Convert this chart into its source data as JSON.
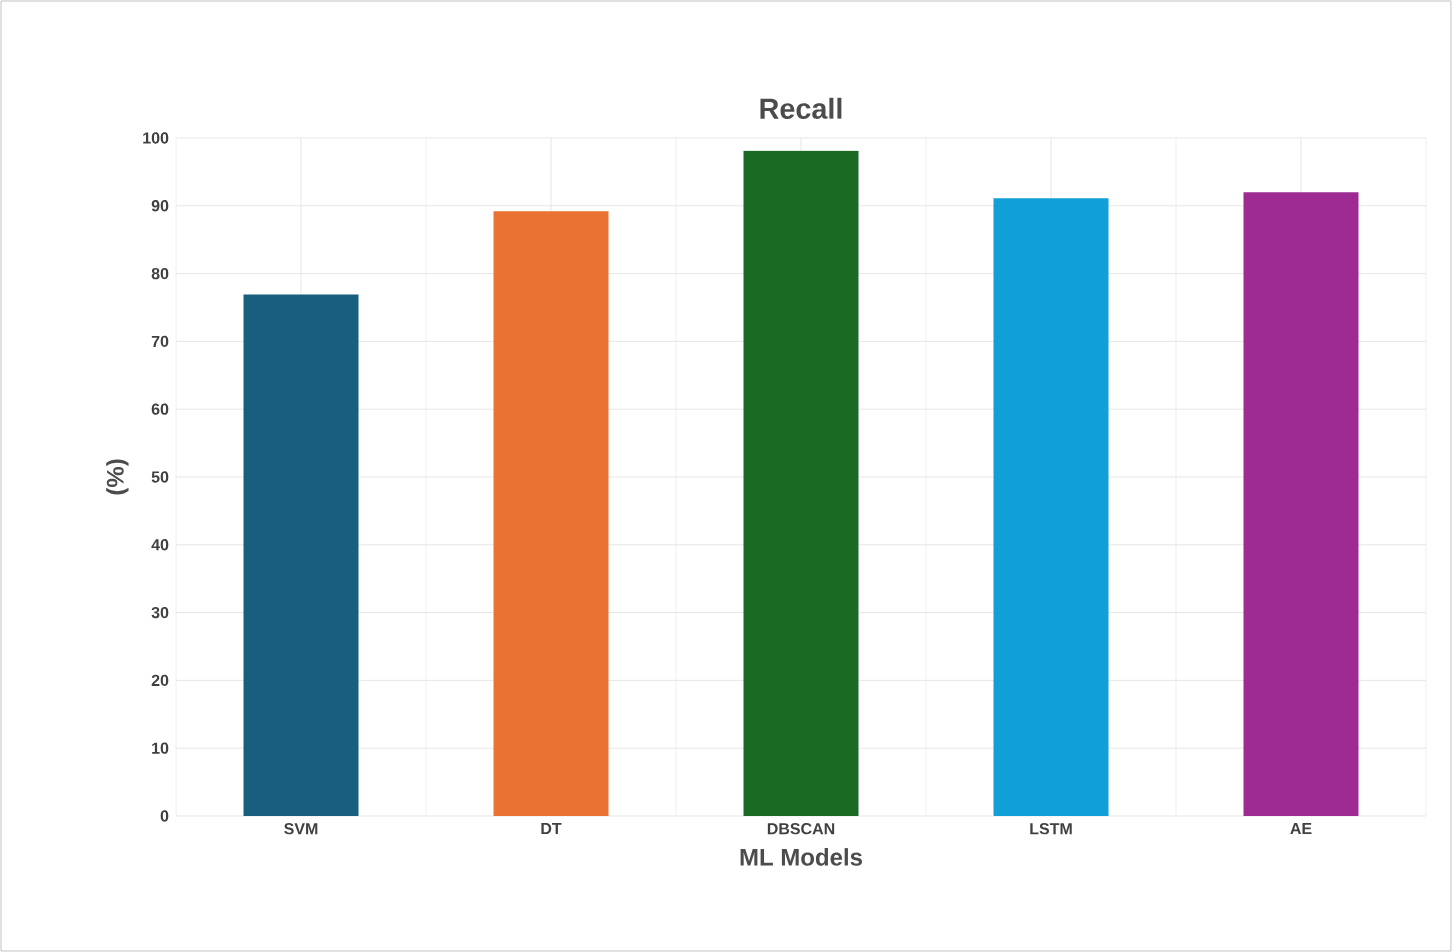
{
  "chart_data": {
    "type": "bar",
    "title": "Recall",
    "xlabel": "ML Models",
    "ylabel": "(%)",
    "categories": [
      "SVM",
      "DT",
      "DBSCAN",
      "LSTM",
      "AE"
    ],
    "values": [
      76.9,
      89.2,
      98.1,
      91.1,
      92
    ],
    "colors": [
      "#175e7f",
      "#ea7232",
      "#1b6a24",
      "#109fd6",
      "#9d2b91"
    ],
    "ylim": [
      0,
      100
    ],
    "yticks": [
      0,
      10,
      20,
      30,
      40,
      50,
      60,
      70,
      80,
      90,
      100
    ],
    "grid": true
  }
}
